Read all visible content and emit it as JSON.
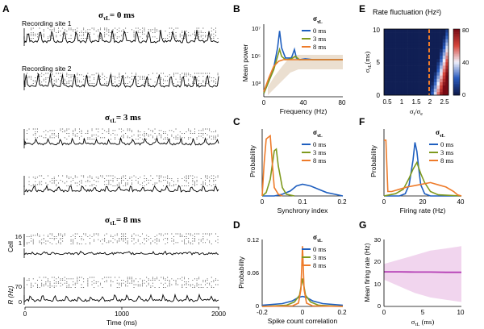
{
  "panel_letters": {
    "A": "A",
    "B": "B",
    "C": "C",
    "D": "D",
    "E": "E",
    "F": "F",
    "G": "G"
  },
  "panelA": {
    "titles": [
      "σ",
      "σ",
      "σ"
    ],
    "title_sub": "τL",
    "title_vals": [
      "= 0 ms",
      "= 3 ms",
      "= 8 ms"
    ],
    "site1": "Recording site 1",
    "site2": "Recording site 2",
    "cell_label": "Cell",
    "cell_ticks": [
      "16",
      "1"
    ],
    "rate_label": "R (Hz)",
    "rate_ticks": [
      "70",
      "0"
    ],
    "xlabel": "Time (ms)",
    "xticks": [
      "0",
      "1000",
      "2000"
    ]
  },
  "legend": {
    "title": "σ",
    "sub": "τL",
    "items": [
      "0 ms",
      "3 ms",
      "8 ms"
    ]
  },
  "colors": {
    "s0": "#1f5fbf",
    "s3": "#7f9a1e",
    "s8": "#ee7b2a",
    "pink": "#e6b3e0",
    "purple": "#b53fb5"
  },
  "chart_data": [
    {
      "id": "B",
      "type": "line",
      "ylabel": "Mean power",
      "xlabel": "Frequency (Hz)",
      "xticks": [
        "0",
        "40",
        "80"
      ],
      "yticks": [
        "10³",
        "10⁵",
        "10⁷"
      ],
      "yscale": "log",
      "xlim": [
        0,
        80
      ],
      "ylim_log10": [
        2.7,
        7
      ],
      "series": [
        {
          "name": "0 ms",
          "x": [
            0,
            5,
            10,
            14,
            16,
            18,
            22,
            28,
            31,
            33,
            36,
            42,
            50,
            60,
            70,
            80
          ],
          "y_log10": [
            2.9,
            3.6,
            4.4,
            5.6,
            6.6,
            5.6,
            5.0,
            5.0,
            5.5,
            5.0,
            4.9,
            4.95,
            4.9,
            4.9,
            4.9,
            4.9
          ]
        },
        {
          "name": "3 ms",
          "x": [
            0,
            5,
            10,
            14,
            16,
            18,
            22,
            28,
            32,
            36,
            42,
            50,
            60,
            70,
            80
          ],
          "y_log10": [
            2.9,
            3.6,
            4.3,
            5.1,
            5.5,
            5.1,
            4.9,
            4.95,
            5.1,
            4.9,
            4.9,
            4.9,
            4.9,
            4.9,
            4.9
          ]
        },
        {
          "name": "8 ms",
          "x": [
            0,
            5,
            10,
            15,
            20,
            25,
            30,
            40,
            50,
            60,
            70,
            80
          ],
          "y_log10": [
            3.0,
            3.8,
            4.5,
            4.8,
            4.9,
            4.9,
            4.9,
            4.9,
            4.9,
            4.9,
            4.9,
            4.9
          ]
        }
      ]
    },
    {
      "id": "C",
      "type": "line",
      "ylabel": "Probability",
      "xlabel": "Synchrony index",
      "xticks": [
        "0",
        "0.1",
        "0.2"
      ],
      "xlim": [
        0,
        0.2
      ],
      "ylim": [
        0,
        0.4
      ],
      "series": [
        {
          "name": "0 ms",
          "x": [
            0,
            0.03,
            0.05,
            0.07,
            0.085,
            0.1,
            0.12,
            0.14,
            0.16,
            0.18,
            0.2
          ],
          "y": [
            0,
            0,
            0.01,
            0.03,
            0.06,
            0.07,
            0.06,
            0.04,
            0.02,
            0.01,
            0
          ]
        },
        {
          "name": "3 ms",
          "x": [
            0,
            0.01,
            0.02,
            0.03,
            0.035,
            0.04,
            0.05,
            0.06,
            0.08
          ],
          "y": [
            0,
            0.02,
            0.1,
            0.27,
            0.28,
            0.18,
            0.05,
            0.01,
            0
          ]
        },
        {
          "name": "8 ms",
          "x": [
            0,
            0.005,
            0.01,
            0.02,
            0.025,
            0.03,
            0.04,
            0.05
          ],
          "y": [
            0,
            0.2,
            0.34,
            0.36,
            0.2,
            0.05,
            0.01,
            0
          ]
        }
      ]
    },
    {
      "id": "D",
      "type": "line",
      "ylabel": "Probability",
      "xlabel": "Spike count correlation",
      "xticks": [
        "-0.2",
        "0",
        "0.2"
      ],
      "yticks": [
        "0",
        "0.06",
        "0.12"
      ],
      "xlim": [
        -0.2,
        0.2
      ],
      "ylim": [
        0,
        0.12
      ],
      "series": [
        {
          "name": "0 ms",
          "x": [
            -0.2,
            -0.1,
            -0.05,
            -0.02,
            0,
            0.02,
            0.05,
            0.1,
            0.2
          ],
          "y": [
            0.002,
            0.005,
            0.01,
            0.016,
            0.018,
            0.016,
            0.01,
            0.005,
            0.002
          ]
        },
        {
          "name": "3 ms",
          "x": [
            -0.2,
            -0.08,
            -0.04,
            -0.015,
            0,
            0.015,
            0.04,
            0.08,
            0.2
          ],
          "y": [
            0,
            0.002,
            0.008,
            0.02,
            0.05,
            0.02,
            0.008,
            0.002,
            0
          ]
        },
        {
          "name": "8 ms",
          "x": [
            -0.2,
            -0.05,
            -0.02,
            -0.008,
            0,
            0.008,
            0.02,
            0.05,
            0.2
          ],
          "y": [
            0,
            0.001,
            0.006,
            0.03,
            0.108,
            0.03,
            0.006,
            0.001,
            0
          ]
        }
      ]
    },
    {
      "id": "E",
      "type": "heatmap",
      "title": "Rate fluctuation (Hz²)",
      "xlabel": "σ_i/σ_e",
      "ylabel": "σ_τL (ms)",
      "xticks": [
        "0.5",
        "1",
        "1.5",
        "2",
        "2.5"
      ],
      "yticks": [
        "0",
        "5",
        "10"
      ],
      "colorbar_ticks": [
        "0",
        "40",
        "80"
      ],
      "dashed_x": 2.0,
      "xlim": [
        0.4,
        2.6
      ],
      "ylim": [
        0,
        10
      ]
    },
    {
      "id": "F",
      "type": "line",
      "ylabel": "Probability",
      "xlabel": "Firing rate (Hz)",
      "xticks": [
        "0",
        "20",
        "40"
      ],
      "xlim": [
        0,
        40
      ],
      "ylim": [
        0,
        0.3
      ],
      "series": [
        {
          "name": "0 ms",
          "x": [
            0,
            8,
            11,
            13,
            15,
            16,
            17,
            18,
            19,
            21,
            24,
            40
          ],
          "y": [
            0,
            0,
            0.01,
            0.05,
            0.16,
            0.24,
            0.2,
            0.12,
            0.05,
            0.01,
            0,
            0
          ]
        },
        {
          "name": "3 ms",
          "x": [
            0,
            6,
            10,
            13,
            15,
            17,
            19,
            21,
            24,
            28,
            40
          ],
          "y": [
            0,
            0.01,
            0.03,
            0.08,
            0.12,
            0.15,
            0.1,
            0.06,
            0.02,
            0.005,
            0
          ]
        },
        {
          "name": "8 ms",
          "x": [
            0,
            1,
            2,
            4,
            8,
            12,
            18,
            24,
            28,
            32,
            36,
            38,
            40
          ],
          "y": [
            0.25,
            0.25,
            0.02,
            0.02,
            0.03,
            0.04,
            0.05,
            0.06,
            0.05,
            0.04,
            0.02,
            0.005,
            0
          ]
        }
      ]
    },
    {
      "id": "G",
      "type": "area",
      "ylabel": "Mean firing rate (Hz)",
      "xlabel": "σ_τL (ms)",
      "xticks": [
        "0",
        "5",
        "10"
      ],
      "yticks": [
        "0",
        "10",
        "20",
        "30"
      ],
      "xlim": [
        0,
        10
      ],
      "ylim": [
        0,
        30
      ],
      "mean": [
        15.5,
        15.5,
        15.4,
        15.4,
        15.3,
        15.3
      ],
      "x": [
        0,
        2,
        4,
        6,
        8,
        10
      ],
      "lower": [
        12,
        9,
        6,
        4,
        3,
        2
      ],
      "upper": [
        19,
        21,
        23,
        25,
        26,
        27
      ]
    }
  ]
}
